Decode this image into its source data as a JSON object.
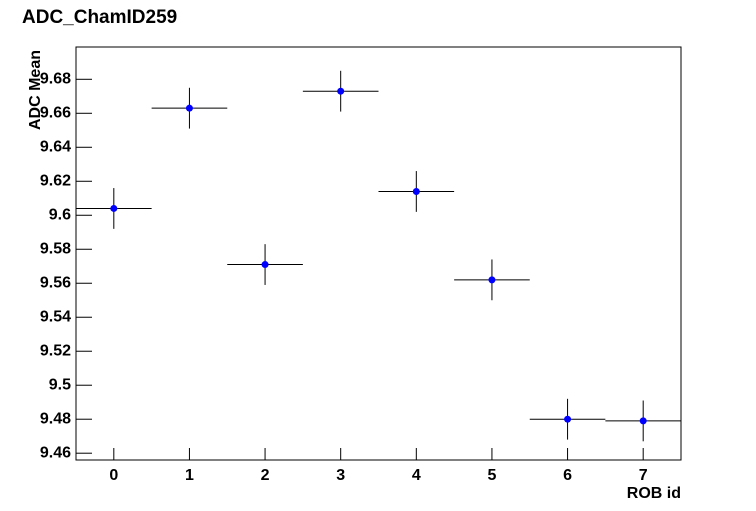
{
  "chart_data": {
    "type": "scatter",
    "title": "ADC_ChamID259",
    "x_label": "ROB id",
    "y_label": "ADC Mean",
    "x": [
      0,
      1,
      2,
      3,
      4,
      5,
      6,
      7
    ],
    "series": [
      {
        "color": "#0000ff",
        "values": [
          9.604,
          9.663,
          9.571,
          9.673,
          9.614,
          9.562,
          9.48,
          9.479
        ],
        "y_errors": [
          0.012,
          0.012,
          0.012,
          0.012,
          0.012,
          0.012,
          0.012,
          0.012
        ],
        "x_errors": [
          0.5,
          0.5,
          0.5,
          0.5,
          0.5,
          0.5,
          0.5,
          0.5
        ]
      }
    ],
    "xlim": [
      -0.5,
      7.5
    ],
    "xticks": [
      0,
      1,
      2,
      3,
      4,
      5,
      6,
      7
    ],
    "ylim": [
      9.456,
      9.699
    ],
    "yticks": [
      9.46,
      9.48,
      9.5,
      9.52,
      9.54,
      9.56,
      9.58,
      9.6,
      9.62,
      9.64,
      9.66,
      9.68
    ]
  }
}
